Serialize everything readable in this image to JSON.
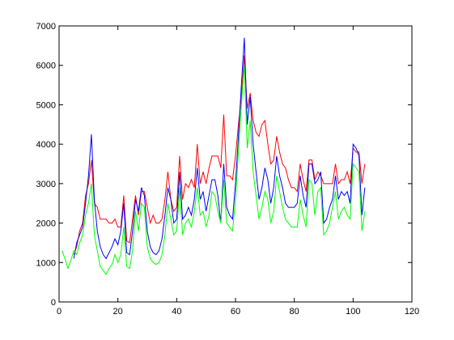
{
  "chart_data": {
    "type": "line",
    "x": [
      1,
      2,
      3,
      4,
      5,
      6,
      7,
      8,
      9,
      10,
      11,
      12,
      13,
      14,
      15,
      16,
      17,
      18,
      19,
      20,
      21,
      22,
      23,
      24,
      25,
      26,
      27,
      28,
      29,
      30,
      31,
      32,
      33,
      34,
      35,
      36,
      37,
      38,
      39,
      40,
      41,
      42,
      43,
      44,
      45,
      46,
      47,
      48,
      49,
      50,
      51,
      52,
      53,
      54,
      55,
      56,
      57,
      58,
      59,
      60,
      61,
      62,
      63,
      64,
      65,
      66,
      67,
      68,
      69,
      70,
      71,
      72,
      73,
      74,
      75,
      76,
      77,
      78,
      79,
      80,
      81,
      82,
      83,
      84,
      85,
      86,
      87,
      88,
      89,
      90,
      91,
      92,
      93,
      94,
      95,
      96,
      97,
      98,
      99,
      100,
      101,
      102,
      103,
      104
    ],
    "series": [
      {
        "color": "#ff0000",
        "values": [
          null,
          null,
          null,
          null,
          1200,
          1400,
          1800,
          2000,
          2700,
          3000,
          3600,
          2500,
          2400,
          2100,
          2100,
          2100,
          2000,
          2000,
          2100,
          1900,
          1900,
          2700,
          1550,
          1500,
          2100,
          2700,
          2200,
          2800,
          2800,
          2400,
          2000,
          2200,
          2000,
          2000,
          2100,
          2600,
          3300,
          2600,
          2300,
          2400,
          3700,
          2600,
          3000,
          2900,
          3100,
          2900,
          4000,
          3000,
          3300,
          3000,
          3400,
          3700,
          3700,
          3700,
          3400,
          4750,
          3200,
          3200,
          3100,
          3700,
          4500,
          5200,
          6250,
          4900,
          5300,
          4600,
          4300,
          4200,
          4500,
          4600,
          4000,
          3500,
          3600,
          4200,
          3800,
          3500,
          3400,
          3100,
          2900,
          2900,
          2800,
          3500,
          3100,
          2800,
          3600,
          3600,
          3100,
          3300,
          3200,
          3000,
          3000,
          3000,
          3000,
          3500,
          3000,
          3100,
          3100,
          3300,
          3000,
          3900,
          3800,
          3800,
          3000,
          3500
        ]
      },
      {
        "color": "#0000ff",
        "values": [
          null,
          null,
          null,
          null,
          1100,
          1500,
          1700,
          1900,
          2500,
          3200,
          4250,
          2600,
          1800,
          1400,
          1200,
          1100,
          1250,
          1400,
          1600,
          1450,
          1800,
          2500,
          1250,
          1200,
          1800,
          2600,
          2300,
          2900,
          2700,
          1800,
          1400,
          1250,
          1200,
          1300,
          1600,
          2200,
          2900,
          2600,
          2000,
          2100,
          3300,
          2100,
          2200,
          2400,
          2200,
          2600,
          3400,
          2600,
          2800,
          2300,
          2700,
          3100,
          3100,
          2700,
          2000,
          3500,
          2400,
          2200,
          2100,
          3000,
          4200,
          5500,
          6700,
          4500,
          5200,
          4000,
          3300,
          2600,
          2900,
          3400,
          3100,
          2500,
          2900,
          3700,
          3200,
          2900,
          2500,
          2400,
          2400,
          2400,
          2500,
          3200,
          2700,
          2400,
          3500,
          3500,
          3000,
          3100,
          3300,
          2000,
          2100,
          2400,
          2600,
          3200,
          2600,
          2800,
          2700,
          2800,
          2500,
          4000,
          3900,
          3700,
          2200,
          2900
        ]
      },
      {
        "color": "#00ff00",
        "values": [
          1300,
          1100,
          850,
          1050,
          1300,
          1200,
          1500,
          1700,
          2200,
          2500,
          3000,
          1700,
          1300,
          900,
          800,
          700,
          850,
          950,
          1200,
          1000,
          1200,
          1900,
          900,
          850,
          1300,
          2300,
          1800,
          2500,
          2400,
          1400,
          1100,
          1000,
          950,
          1000,
          1200,
          1700,
          2500,
          2100,
          1700,
          1800,
          2900,
          1700,
          2000,
          2100,
          1900,
          2300,
          2900,
          2200,
          2300,
          1900,
          2200,
          2800,
          2700,
          2300,
          2000,
          3100,
          2000,
          1900,
          1800,
          2600,
          3800,
          5000,
          6000,
          3900,
          4600,
          3300,
          2700,
          2100,
          2400,
          2800,
          2600,
          2000,
          2300,
          3200,
          2800,
          2400,
          2100,
          2000,
          1900,
          1900,
          1900,
          2600,
          2200,
          1900,
          3100,
          3000,
          2200,
          2800,
          2900,
          1700,
          1800,
          2000,
          2400,
          2800,
          2100,
          2300,
          2400,
          2200,
          2100,
          3500,
          3400,
          3300,
          1800,
          2300
        ]
      }
    ],
    "xlim": [
      0,
      120
    ],
    "xticks": [
      0,
      20,
      40,
      60,
      80,
      100,
      120
    ],
    "ylim": [
      0,
      7000
    ],
    "yticks": [
      0,
      1000,
      2000,
      3000,
      4000,
      5000,
      6000,
      7000
    ]
  }
}
